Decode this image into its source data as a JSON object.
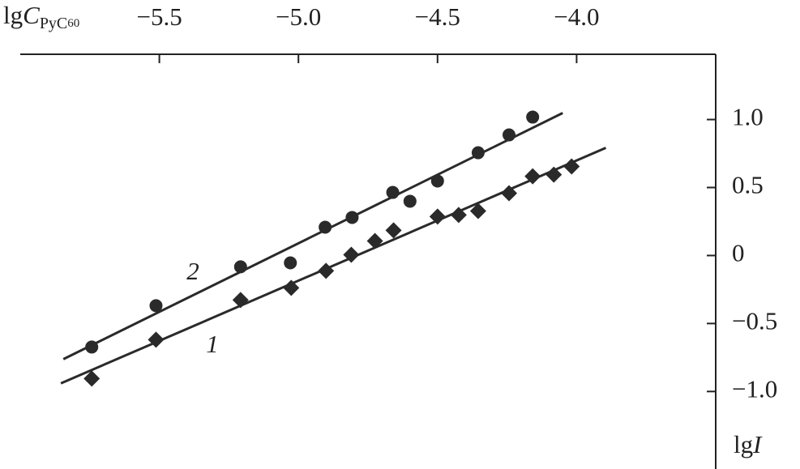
{
  "chart_data": {
    "type": "scatter",
    "x_label": [
      "lg",
      "C",
      "PyC",
      "60"
    ],
    "y_label": [
      "lg",
      "I"
    ],
    "xlim": [
      -6.0,
      -3.5
    ],
    "ylim": [
      -1.57,
      1.48
    ],
    "xticks": [
      {
        "value": -5.5,
        "label": "−5.5"
      },
      {
        "value": -5.0,
        "label": "−5.0"
      },
      {
        "value": -4.5,
        "label": "−4.5"
      },
      {
        "value": -4.0,
        "label": "−4.0"
      }
    ],
    "yticks": [
      {
        "value": 1.0,
        "label": "1.0"
      },
      {
        "value": 0.5,
        "label": "0.5"
      },
      0,
      {
        "value": -0.5,
        "label": "−0.5"
      },
      {
        "value": -1.0,
        "label": "−1.0"
      }
    ],
    "series": [
      {
        "name": "1",
        "marker": "diamond",
        "color": "#2a2a2a",
        "x": [
          -5.743,
          -5.512,
          -5.208,
          -5.026,
          -4.901,
          -4.81,
          -4.725,
          -4.658,
          -4.5,
          -4.424,
          -4.354,
          -4.243,
          -4.158,
          -4.082,
          -4.018
        ],
        "values": [
          -0.905,
          -0.619,
          -0.327,
          -0.238,
          -0.113,
          0.006,
          0.107,
          0.185,
          0.286,
          0.298,
          0.327,
          0.458,
          0.583,
          0.595,
          0.655
        ],
        "fit": {
          "x": [
            -5.854,
            -3.895
          ],
          "values": [
            -0.94,
            0.792
          ]
        }
      },
      {
        "name": "2",
        "marker": "circle",
        "color": "#2a2a2a",
        "x": [
          -5.743,
          -5.512,
          -5.208,
          -5.029,
          -4.904,
          -4.807,
          -4.661,
          -4.599,
          -4.5,
          -4.354,
          -4.243,
          -4.158
        ],
        "values": [
          -0.673,
          -0.369,
          -0.083,
          -0.054,
          0.208,
          0.28,
          0.464,
          0.399,
          0.548,
          0.756,
          0.887,
          1.018
        ],
        "fit": {
          "x": [
            -5.845,
            -4.05
          ],
          "values": [
            -0.762,
            1.048
          ]
        }
      }
    ]
  }
}
